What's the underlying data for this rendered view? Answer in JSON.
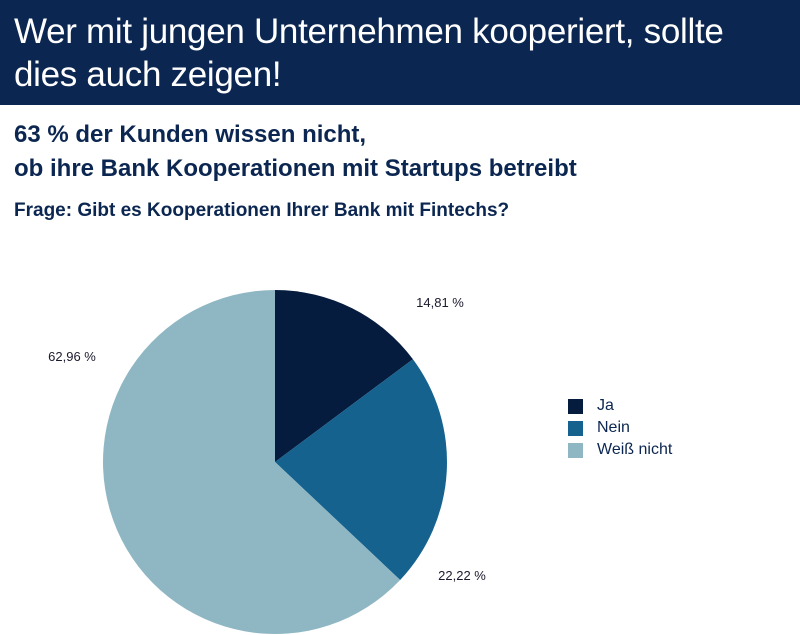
{
  "header": {
    "title": "Wer mit jungen Unternehmen kooperiert, sollte dies auch zeigen!"
  },
  "subtitle": {
    "line1": "63 % der Kunden wissen nicht,",
    "line2": "ob ihre Bank Kooperationen mit Startups betreibt"
  },
  "question": "Frage: Gibt es Kooperationen Ihrer Bank mit Fintechs?",
  "chart_data": {
    "type": "pie",
    "slices": [
      {
        "name": "Ja",
        "value": 14.81,
        "label": "14,81 %",
        "color": "#061c3e"
      },
      {
        "name": "Nein",
        "value": 22.22,
        "label": "22,22 %",
        "color": "#16628f"
      },
      {
        "name": "Weiß nicht",
        "value": 62.96,
        "label": "62,96 %",
        "color": "#8fb7c3"
      }
    ],
    "start_angle": "12 o'clock",
    "direction": "clockwise",
    "legend_position": "right"
  }
}
